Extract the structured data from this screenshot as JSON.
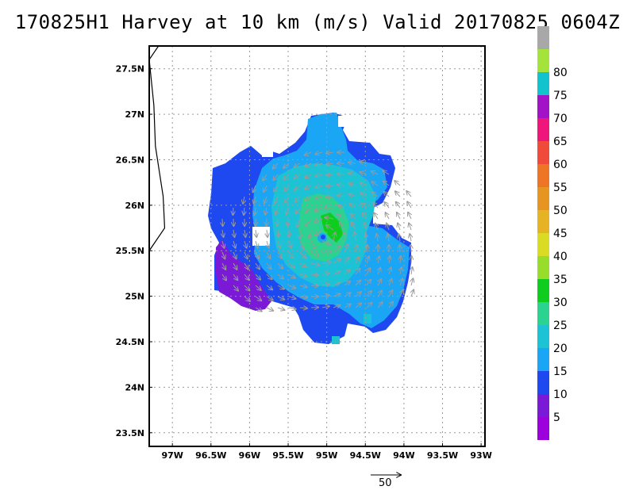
{
  "title": "170825H1 Harvey at 10 km (m/s) Valid 20170825 0604Z",
  "map": {
    "lon_range": [
      -97.3,
      -92.95
    ],
    "lat_range": [
      23.35,
      27.75
    ],
    "x_ticks": [
      {
        "lon": -97.0,
        "label": "97W"
      },
      {
        "lon": -96.5,
        "label": "96.5W"
      },
      {
        "lon": -96.0,
        "label": "96W"
      },
      {
        "lon": -95.5,
        "label": "95.5W"
      },
      {
        "lon": -95.0,
        "label": "95W"
      },
      {
        "lon": -94.5,
        "label": "94.5W"
      },
      {
        "lon": -94.0,
        "label": "94W"
      },
      {
        "lon": -93.5,
        "label": "93.5W"
      },
      {
        "lon": -93.0,
        "label": "93W"
      }
    ],
    "y_ticks": [
      {
        "lat": 23.5,
        "label": "23.5N"
      },
      {
        "lat": 24.0,
        "label": "24N"
      },
      {
        "lat": 24.5,
        "label": "24.5N"
      },
      {
        "lat": 25.0,
        "label": "25N"
      },
      {
        "lat": 25.5,
        "label": "25.5N"
      },
      {
        "lat": 26.0,
        "label": "26N"
      },
      {
        "lat": 26.5,
        "label": "26.5N"
      },
      {
        "lat": 27.0,
        "label": "27N"
      },
      {
        "lat": 27.5,
        "label": "27.5N"
      }
    ],
    "grid": "dotted",
    "storm_center": {
      "lon": -95.02,
      "lat": 25.65
    },
    "coastline": [
      [
        -97.3,
        27.6
      ],
      [
        -97.18,
        27.75
      ],
      [
        -97.3,
        27.6
      ],
      [
        -97.24,
        27.1
      ],
      [
        -97.22,
        26.65
      ],
      [
        -97.12,
        26.1
      ],
      [
        -97.1,
        25.75
      ],
      [
        -97.3,
        25.5
      ]
    ]
  },
  "vector_reference": {
    "label": "50",
    "value_ms": 50
  },
  "colorbar": {
    "levels": [
      {
        "label": "",
        "color": "#9b00dd"
      },
      {
        "label": "5",
        "color": "#7a1ad6"
      },
      {
        "label": "10",
        "color": "#1e48f0"
      },
      {
        "label": "15",
        "color": "#1aa5f5"
      },
      {
        "label": "20",
        "color": "#1cc3d4"
      },
      {
        "label": "25",
        "color": "#2cd28f"
      },
      {
        "label": "30",
        "color": "#0fcd1e"
      },
      {
        "label": "35",
        "color": "#98dd2c"
      },
      {
        "label": "40",
        "color": "#d9dc23"
      },
      {
        "label": "45",
        "color": "#e5b323"
      },
      {
        "label": "50",
        "color": "#e79521"
      },
      {
        "label": "55",
        "color": "#ed7525"
      },
      {
        "label": "60",
        "color": "#f04a3a"
      },
      {
        "label": "65",
        "color": "#f0157a"
      },
      {
        "label": "70",
        "color": "#a212c7"
      },
      {
        "label": "75",
        "color": "#12c2cc"
      },
      {
        "label": "80",
        "color": "#a4e23c"
      },
      {
        "label": "",
        "color": "#a8a8a8"
      }
    ]
  }
}
